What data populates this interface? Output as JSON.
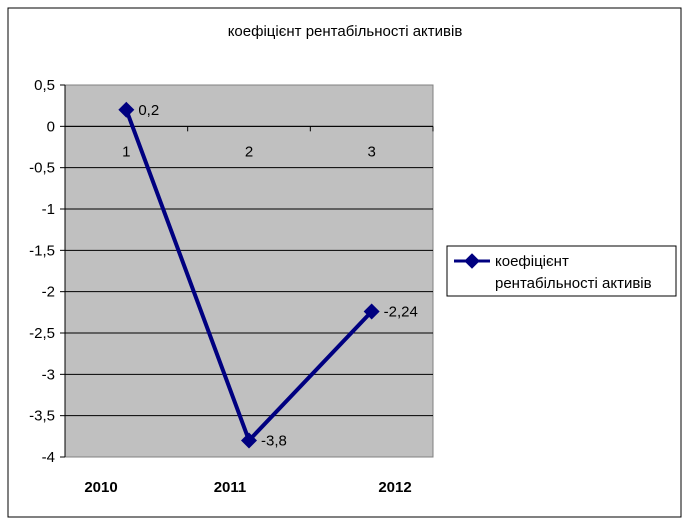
{
  "chart_data": {
    "type": "line",
    "title": "коефіцієнт рентабільності активів",
    "categories": [
      "1",
      "2",
      "3"
    ],
    "series": [
      {
        "name": "коефіцієнт рентабільності активів",
        "values": [
          0.2,
          -3.8,
          -2.24
        ],
        "data_labels": [
          "0,2",
          "-3,8",
          "-2,24"
        ]
      }
    ],
    "ylim": [
      -4,
      0.5
    ],
    "y_ticks": [
      0.5,
      0,
      -0.5,
      -1,
      -1.5,
      -2,
      -2.5,
      -3,
      -3.5,
      -4
    ],
    "y_tick_labels": [
      "0,5",
      "0",
      "-0,5",
      "-1",
      "-1,5",
      "-2",
      "-2,5",
      "-3",
      "-3,5",
      "-4"
    ],
    "grid": true,
    "legend_position": "right",
    "legend_label_lines": [
      "коефіцієнт",
      "рентабільності активів"
    ],
    "year_labels": [
      "2010",
      "2011",
      "2012"
    ],
    "colors": {
      "series": "#000080",
      "plot_background": "#c0c0c0",
      "gridline": "#000000",
      "border": "#000000"
    },
    "marker": "diamond"
  }
}
